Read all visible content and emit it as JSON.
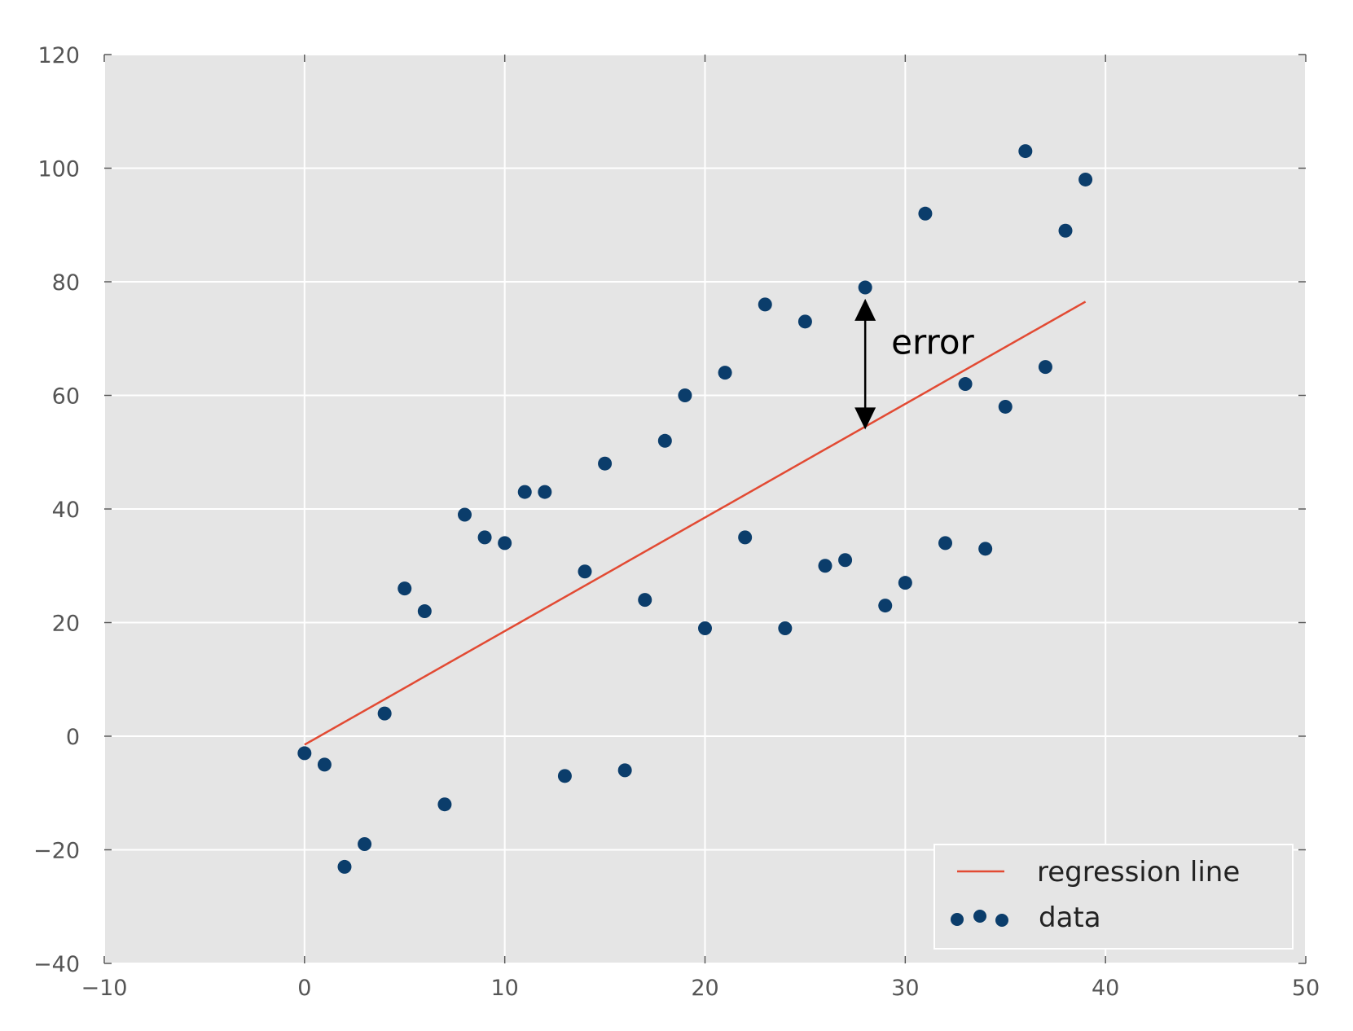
{
  "chart_data": {
    "type": "scatter",
    "title": "",
    "xlabel": "",
    "ylabel": "",
    "xlim": [
      -10,
      50
    ],
    "ylim": [
      -40,
      120
    ],
    "x_ticks": [
      -10,
      0,
      10,
      20,
      30,
      40,
      50
    ],
    "y_ticks": [
      -40,
      -20,
      0,
      20,
      40,
      60,
      80,
      100,
      120
    ],
    "x_tick_labels": [
      "−10",
      "0",
      "10",
      "20",
      "30",
      "40",
      "50"
    ],
    "y_tick_labels": [
      "−40",
      "−20",
      "0",
      "20",
      "40",
      "60",
      "80",
      "100",
      "120"
    ],
    "grid": true,
    "background_color": "#e5e5e5",
    "legend": {
      "position": "lower-right",
      "entries": [
        {
          "label": "regression line",
          "kind": "line",
          "color": "#e24a33"
        },
        {
          "label": "data",
          "kind": "marker",
          "color": "#0b3d6b"
        }
      ]
    },
    "series": [
      {
        "name": "data",
        "kind": "scatter",
        "color": "#0b3d6b",
        "points": [
          [
            0,
            -3
          ],
          [
            1,
            -5
          ],
          [
            2,
            -23
          ],
          [
            3,
            -19
          ],
          [
            4,
            4
          ],
          [
            5,
            26
          ],
          [
            6,
            22
          ],
          [
            7,
            -12
          ],
          [
            8,
            39
          ],
          [
            9,
            35
          ],
          [
            10,
            34
          ],
          [
            11,
            43
          ],
          [
            12,
            43
          ],
          [
            13,
            -7
          ],
          [
            14,
            29
          ],
          [
            15,
            48
          ],
          [
            16,
            -6
          ],
          [
            17,
            24
          ],
          [
            18,
            52
          ],
          [
            19,
            60
          ],
          [
            20,
            19
          ],
          [
            21,
            64
          ],
          [
            22,
            35
          ],
          [
            23,
            76
          ],
          [
            24,
            19
          ],
          [
            25,
            73
          ],
          [
            26,
            30
          ],
          [
            27,
            31
          ],
          [
            28,
            79
          ],
          [
            29,
            23
          ],
          [
            30,
            27
          ],
          [
            31,
            92
          ],
          [
            32,
            34
          ],
          [
            33,
            62
          ],
          [
            34,
            33
          ],
          [
            35,
            58
          ],
          [
            36,
            103
          ],
          [
            37,
            65
          ],
          [
            38,
            89
          ],
          [
            39,
            98
          ]
        ]
      },
      {
        "name": "regression line",
        "kind": "line",
        "color": "#e24a33",
        "points": [
          [
            0,
            -1.5
          ],
          [
            39,
            76.5
          ]
        ]
      }
    ],
    "annotations": [
      {
        "text": "error",
        "arrow": {
          "x": 28,
          "y_from": 54,
          "y_to": 77,
          "double_headed": true
        },
        "text_position": [
          29.3,
          69
        ]
      }
    ]
  }
}
